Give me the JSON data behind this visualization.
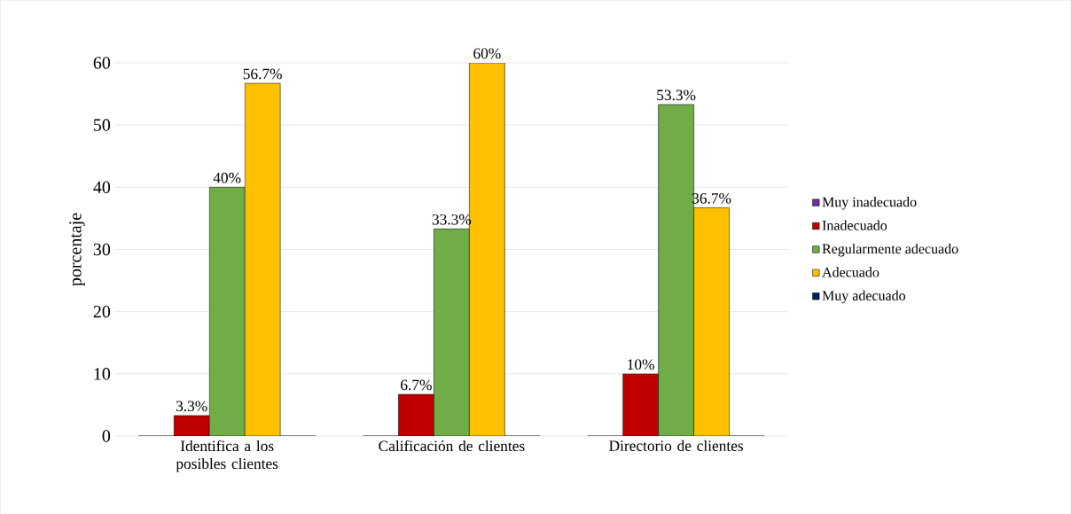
{
  "chart_data": {
    "type": "bar",
    "ylabel": "porcentaje",
    "categories": [
      "Identifica a los posibles clientes",
      "Calificación de clientes",
      "Directorio de clientes"
    ],
    "series": [
      {
        "name": "Muy inadecuado",
        "color": "#7030a0",
        "values": [
          0,
          0,
          0
        ],
        "value_labels": [
          null,
          null,
          null
        ]
      },
      {
        "name": "Inadecuado",
        "color": "#c00000",
        "values": [
          3.3,
          6.7,
          10
        ],
        "value_labels": [
          "3.3%",
          "6.7%",
          "10%"
        ]
      },
      {
        "name": "Regularmente adecuado",
        "color": "#70ad47",
        "values": [
          40,
          33.3,
          53.3
        ],
        "value_labels": [
          "40%",
          "33.3%",
          "53.3%"
        ]
      },
      {
        "name": "Adecuado",
        "color": "#ffc000",
        "values": [
          56.7,
          60,
          36.7
        ],
        "value_labels": [
          "56.7%",
          "60%",
          "36.7%"
        ]
      },
      {
        "name": "Muy adecuado",
        "color": "#002060",
        "values": [
          0,
          0,
          0
        ],
        "value_labels": [
          null,
          null,
          null
        ]
      }
    ],
    "ylim": [
      0,
      60
    ],
    "yticks": [
      0,
      10,
      20,
      30,
      40,
      50,
      60
    ],
    "grid": "y",
    "legend": "right"
  }
}
